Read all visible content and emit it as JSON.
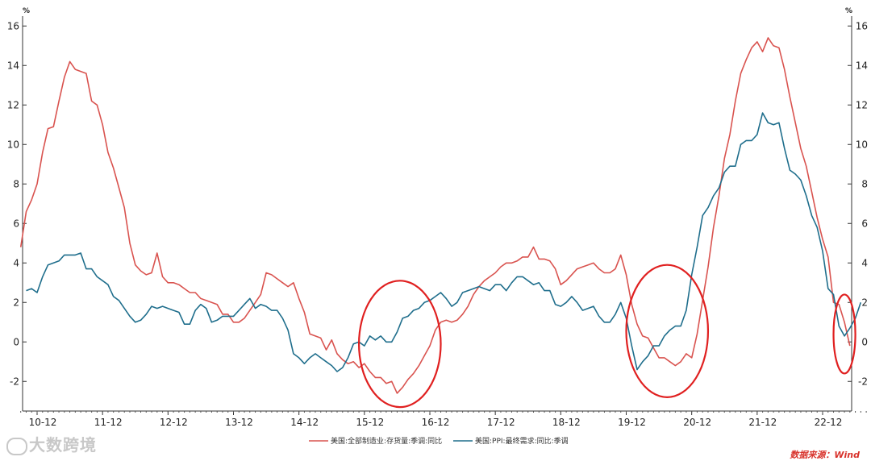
{
  "chart_data": {
    "type": "line",
    "y_unit_left": "%",
    "y_unit_right": "%",
    "ylim": [
      -3.5,
      16.5
    ],
    "yticks": [
      -2,
      0,
      2,
      4,
      6,
      8,
      10,
      12,
      14,
      16
    ],
    "xlim": [
      0,
      154
    ],
    "xticks": [
      {
        "label": "10-12",
        "x": 0
      },
      {
        "label": "11-12",
        "x": 12
      },
      {
        "label": "12-12",
        "x": 24
      },
      {
        "label": "13-12",
        "x": 36
      },
      {
        "label": "14-12",
        "x": 48
      },
      {
        "label": "15-12",
        "x": 60
      },
      {
        "label": "16-12",
        "x": 72
      },
      {
        "label": "17-12",
        "x": 84
      },
      {
        "label": "18-12",
        "x": 96
      },
      {
        "label": "19-12",
        "x": 108
      },
      {
        "label": "20-12",
        "x": 120
      },
      {
        "label": "21-12",
        "x": 132
      },
      {
        "label": "22-12",
        "x": 144
      }
    ],
    "series": [
      {
        "name": "美国:全部制造业:存货量:季调:同比",
        "color": "#d9534f",
        "points": [
          [
            -3,
            4.8
          ],
          [
            -2,
            6.6
          ],
          [
            -1,
            7.2
          ],
          [
            0,
            8.0
          ],
          [
            1,
            9.6
          ],
          [
            2,
            10.8
          ],
          [
            3,
            10.9
          ],
          [
            4,
            12.2
          ],
          [
            5,
            13.4
          ],
          [
            6,
            14.2
          ],
          [
            7,
            13.8
          ],
          [
            8,
            13.7
          ],
          [
            9,
            13.6
          ],
          [
            10,
            12.2
          ],
          [
            11,
            12.0
          ],
          [
            12,
            11.0
          ],
          [
            13,
            9.6
          ],
          [
            14,
            8.8
          ],
          [
            15,
            7.8
          ],
          [
            16,
            6.8
          ],
          [
            17,
            5.0
          ],
          [
            18,
            3.9
          ],
          [
            19,
            3.6
          ],
          [
            20,
            3.4
          ],
          [
            21,
            3.5
          ],
          [
            22,
            4.5
          ],
          [
            23,
            3.3
          ],
          [
            24,
            3.0
          ],
          [
            25,
            3.0
          ],
          [
            26,
            2.9
          ],
          [
            27,
            2.7
          ],
          [
            28,
            2.5
          ],
          [
            29,
            2.5
          ],
          [
            30,
            2.2
          ],
          [
            31,
            2.1
          ],
          [
            32,
            2.0
          ],
          [
            33,
            1.9
          ],
          [
            34,
            1.4
          ],
          [
            35,
            1.4
          ],
          [
            36,
            1.0
          ],
          [
            37,
            1.0
          ],
          [
            38,
            1.2
          ],
          [
            39,
            1.6
          ],
          [
            40,
            2.0
          ],
          [
            41,
            2.4
          ],
          [
            42,
            3.5
          ],
          [
            43,
            3.4
          ],
          [
            44,
            3.2
          ],
          [
            45,
            3.0
          ],
          [
            46,
            2.8
          ],
          [
            47,
            3.0
          ],
          [
            48,
            2.2
          ],
          [
            49,
            1.5
          ],
          [
            50,
            0.4
          ],
          [
            51,
            0.3
          ],
          [
            52,
            0.2
          ],
          [
            53,
            -0.4
          ],
          [
            54,
            0.1
          ],
          [
            55,
            -0.6
          ],
          [
            56,
            -0.9
          ],
          [
            57,
            -1.1
          ],
          [
            58,
            -1.0
          ],
          [
            59,
            -1.3
          ],
          [
            60,
            -1.1
          ],
          [
            61,
            -1.5
          ],
          [
            62,
            -1.8
          ],
          [
            63,
            -1.8
          ],
          [
            64,
            -2.1
          ],
          [
            65,
            -2.0
          ],
          [
            66,
            -2.6
          ],
          [
            67,
            -2.3
          ],
          [
            68,
            -1.9
          ],
          [
            69,
            -1.6
          ],
          [
            70,
            -1.2
          ],
          [
            71,
            -0.7
          ],
          [
            72,
            -0.2
          ],
          [
            73,
            0.6
          ],
          [
            74,
            1.0
          ],
          [
            75,
            1.1
          ],
          [
            76,
            1.0
          ],
          [
            77,
            1.1
          ],
          [
            78,
            1.4
          ],
          [
            79,
            1.8
          ],
          [
            80,
            2.4
          ],
          [
            81,
            2.8
          ],
          [
            82,
            3.1
          ],
          [
            83,
            3.3
          ],
          [
            84,
            3.5
          ],
          [
            85,
            3.8
          ],
          [
            86,
            4.0
          ],
          [
            87,
            4.0
          ],
          [
            88,
            4.1
          ],
          [
            89,
            4.3
          ],
          [
            90,
            4.3
          ],
          [
            91,
            4.8
          ],
          [
            92,
            4.2
          ],
          [
            93,
            4.2
          ],
          [
            94,
            4.1
          ],
          [
            95,
            3.7
          ],
          [
            96,
            2.9
          ],
          [
            97,
            3.1
          ],
          [
            98,
            3.4
          ],
          [
            99,
            3.7
          ],
          [
            100,
            3.8
          ],
          [
            101,
            3.9
          ],
          [
            102,
            4.0
          ],
          [
            103,
            3.7
          ],
          [
            104,
            3.5
          ],
          [
            105,
            3.5
          ],
          [
            106,
            3.7
          ],
          [
            107,
            4.4
          ],
          [
            108,
            3.4
          ],
          [
            109,
            1.9
          ],
          [
            110,
            0.9
          ],
          [
            111,
            0.3
          ],
          [
            112,
            0.2
          ],
          [
            113,
            -0.3
          ],
          [
            114,
            -0.8
          ],
          [
            115,
            -0.8
          ],
          [
            116,
            -1.0
          ],
          [
            117,
            -1.2
          ],
          [
            118,
            -1.0
          ],
          [
            119,
            -0.6
          ],
          [
            120,
            -0.8
          ],
          [
            121,
            0.4
          ],
          [
            122,
            2.1
          ],
          [
            123,
            3.8
          ],
          [
            124,
            5.8
          ],
          [
            125,
            7.4
          ],
          [
            126,
            9.3
          ],
          [
            127,
            10.5
          ],
          [
            128,
            12.2
          ],
          [
            129,
            13.6
          ],
          [
            130,
            14.3
          ],
          [
            131,
            14.9
          ],
          [
            132,
            15.2
          ],
          [
            133,
            14.7
          ],
          [
            134,
            15.4
          ],
          [
            135,
            15.0
          ],
          [
            136,
            14.9
          ],
          [
            137,
            13.8
          ],
          [
            138,
            12.4
          ],
          [
            139,
            11.1
          ],
          [
            140,
            9.8
          ],
          [
            141,
            8.9
          ],
          [
            142,
            7.6
          ],
          [
            143,
            6.3
          ],
          [
            144,
            5.2
          ],
          [
            145,
            4.3
          ],
          [
            146,
            2.0
          ],
          [
            147,
            1.9
          ],
          [
            148,
            1.0
          ],
          [
            149,
            -0.2
          ]
        ]
      },
      {
        "name": "美国:PPI:最终需求:同比:季调",
        "color": "#1f6e8c",
        "points": [
          [
            -2,
            2.6
          ],
          [
            -1,
            2.7
          ],
          [
            0,
            2.5
          ],
          [
            1,
            3.3
          ],
          [
            2,
            3.9
          ],
          [
            3,
            4.0
          ],
          [
            4,
            4.1
          ],
          [
            5,
            4.4
          ],
          [
            6,
            4.4
          ],
          [
            7,
            4.4
          ],
          [
            8,
            4.5
          ],
          [
            9,
            3.7
          ],
          [
            10,
            3.7
          ],
          [
            11,
            3.3
          ],
          [
            12,
            3.1
          ],
          [
            13,
            2.9
          ],
          [
            14,
            2.3
          ],
          [
            15,
            2.1
          ],
          [
            16,
            1.7
          ],
          [
            17,
            1.3
          ],
          [
            18,
            1.0
          ],
          [
            19,
            1.1
          ],
          [
            20,
            1.4
          ],
          [
            21,
            1.8
          ],
          [
            22,
            1.7
          ],
          [
            23,
            1.8
          ],
          [
            24,
            1.7
          ],
          [
            25,
            1.6
          ],
          [
            26,
            1.5
          ],
          [
            27,
            0.9
          ],
          [
            28,
            0.9
          ],
          [
            29,
            1.6
          ],
          [
            30,
            1.9
          ],
          [
            31,
            1.7
          ],
          [
            32,
            1.0
          ],
          [
            33,
            1.1
          ],
          [
            34,
            1.3
          ],
          [
            35,
            1.3
          ],
          [
            36,
            1.3
          ],
          [
            37,
            1.6
          ],
          [
            38,
            1.9
          ],
          [
            39,
            2.2
          ],
          [
            40,
            1.7
          ],
          [
            41,
            1.9
          ],
          [
            42,
            1.8
          ],
          [
            43,
            1.6
          ],
          [
            44,
            1.6
          ],
          [
            45,
            1.2
          ],
          [
            46,
            0.6
          ],
          [
            47,
            -0.6
          ],
          [
            48,
            -0.8
          ],
          [
            49,
            -1.1
          ],
          [
            50,
            -0.8
          ],
          [
            51,
            -0.6
          ],
          [
            52,
            -0.8
          ],
          [
            53,
            -1.0
          ],
          [
            54,
            -1.2
          ],
          [
            55,
            -1.5
          ],
          [
            56,
            -1.3
          ],
          [
            57,
            -0.8
          ],
          [
            58,
            -0.1
          ],
          [
            59,
            0.0
          ],
          [
            60,
            -0.2
          ],
          [
            61,
            0.3
          ],
          [
            62,
            0.1
          ],
          [
            63,
            0.3
          ],
          [
            64,
            0.0
          ],
          [
            65,
            0.0
          ],
          [
            66,
            0.5
          ],
          [
            67,
            1.2
          ],
          [
            68,
            1.3
          ],
          [
            69,
            1.6
          ],
          [
            70,
            1.7
          ],
          [
            71,
            2.0
          ],
          [
            72,
            2.1
          ],
          [
            73,
            2.3
          ],
          [
            74,
            2.5
          ],
          [
            75,
            2.2
          ],
          [
            76,
            1.8
          ],
          [
            77,
            2.0
          ],
          [
            78,
            2.5
          ],
          [
            79,
            2.6
          ],
          [
            80,
            2.7
          ],
          [
            81,
            2.8
          ],
          [
            82,
            2.7
          ],
          [
            83,
            2.6
          ],
          [
            84,
            2.9
          ],
          [
            85,
            2.9
          ],
          [
            86,
            2.6
          ],
          [
            87,
            3.0
          ],
          [
            88,
            3.3
          ],
          [
            89,
            3.3
          ],
          [
            90,
            3.1
          ],
          [
            91,
            2.9
          ],
          [
            92,
            3.0
          ],
          [
            93,
            2.6
          ],
          [
            94,
            2.6
          ],
          [
            95,
            1.9
          ],
          [
            96,
            1.8
          ],
          [
            97,
            2.0
          ],
          [
            98,
            2.3
          ],
          [
            99,
            2.0
          ],
          [
            100,
            1.6
          ],
          [
            101,
            1.7
          ],
          [
            102,
            1.8
          ],
          [
            103,
            1.3
          ],
          [
            104,
            1.0
          ],
          [
            105,
            1.0
          ],
          [
            106,
            1.4
          ],
          [
            107,
            2.0
          ],
          [
            108,
            1.2
          ],
          [
            109,
            -0.2
          ],
          [
            110,
            -1.4
          ],
          [
            111,
            -1.0
          ],
          [
            112,
            -0.7
          ],
          [
            113,
            -0.2
          ],
          [
            114,
            -0.2
          ],
          [
            115,
            0.3
          ],
          [
            116,
            0.6
          ],
          [
            117,
            0.8
          ],
          [
            118,
            0.8
          ],
          [
            119,
            1.6
          ],
          [
            120,
            3.4
          ],
          [
            121,
            4.8
          ],
          [
            122,
            6.4
          ],
          [
            123,
            6.8
          ],
          [
            124,
            7.4
          ],
          [
            125,
            7.8
          ],
          [
            126,
            8.6
          ],
          [
            127,
            8.9
          ],
          [
            128,
            8.9
          ],
          [
            129,
            10.0
          ],
          [
            130,
            10.2
          ],
          [
            131,
            10.2
          ],
          [
            132,
            10.5
          ],
          [
            133,
            11.6
          ],
          [
            134,
            11.1
          ],
          [
            135,
            11.0
          ],
          [
            136,
            11.1
          ],
          [
            137,
            9.8
          ],
          [
            138,
            8.7
          ],
          [
            139,
            8.5
          ],
          [
            140,
            8.2
          ],
          [
            141,
            7.4
          ],
          [
            142,
            6.4
          ],
          [
            143,
            5.8
          ],
          [
            144,
            4.6
          ],
          [
            145,
            2.7
          ],
          [
            146,
            2.4
          ],
          [
            147,
            0.8
          ],
          [
            148,
            0.3
          ],
          [
            149,
            0.7
          ],
          [
            150,
            1.2
          ],
          [
            151,
            2.0
          ]
        ]
      }
    ],
    "annotations": [
      {
        "type": "ellipse",
        "color": "#e02020",
        "x_range": [
          59,
          74
        ],
        "y_range": [
          -3.3,
          3.1
        ]
      },
      {
        "type": "ellipse",
        "color": "#e02020",
        "x_range": [
          108,
          123
        ],
        "y_range": [
          -2.8,
          3.9
        ]
      },
      {
        "type": "ellipse",
        "color": "#e02020",
        "x_range": [
          146,
          150
        ],
        "y_range": [
          -1.6,
          2.4
        ]
      }
    ],
    "grid": false,
    "legend_position": "bottom"
  },
  "watermark": "大数跨境",
  "source_note": "数据来源：Wind"
}
